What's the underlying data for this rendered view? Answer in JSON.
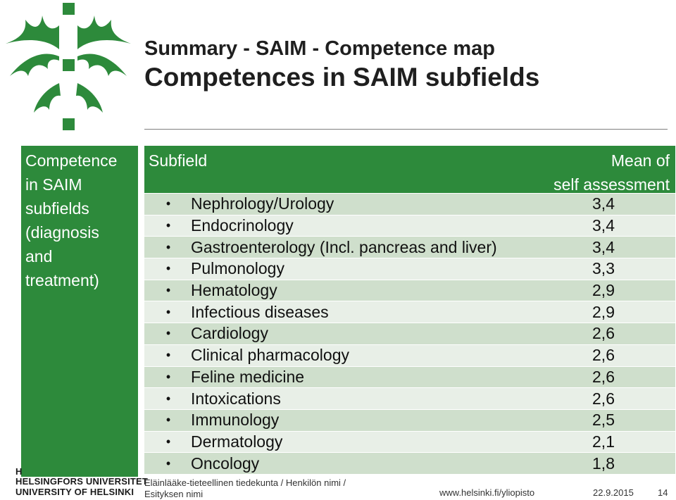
{
  "header": {
    "title_line1": "Summary - SAIM - Competence map",
    "title_line2": "Competences in SAIM subfields"
  },
  "side_box": {
    "lines": [
      "Competence",
      "in SAIM",
      "subfields",
      "(diagnosis",
      "and",
      "treatment)"
    ]
  },
  "table": {
    "col_subfield": "Subfield",
    "col_mean_line1": "Mean of",
    "col_mean_line2": "self assessment",
    "rows": [
      {
        "name": "Nephrology/Urology",
        "value": "3,4"
      },
      {
        "name": "Endocrinology",
        "value": "3,4"
      },
      {
        "name": "Gastroenterology (Incl. pancreas and liver)",
        "value": "3,4"
      },
      {
        "name": "Pulmonology",
        "value": "3,3"
      },
      {
        "name": "Hematology",
        "value": "2,9"
      },
      {
        "name": "Infectious diseases",
        "value": "2,9"
      },
      {
        "name": "Cardiology",
        "value": "2,6"
      },
      {
        "name": "Clinical pharmacology",
        "value": "2,6"
      },
      {
        "name": "Feline medicine",
        "value": "2,6"
      },
      {
        "name": "Intoxications",
        "value": "2,6"
      },
      {
        "name": "Immunology",
        "value": "2,5"
      },
      {
        "name": "Dermatology",
        "value": "2,1"
      },
      {
        "name": "Oncology",
        "value": "1,8"
      }
    ]
  },
  "footer": {
    "logo_h": "H",
    "logo_line1": "HELSINGFORS UNIVERSITET",
    "logo_line2": "UNIVERSITY OF HELSINKI",
    "faculty_line1": "Eläinlääke-tieteellinen tiedekunta / Henkilön nimi /",
    "faculty_line2": "Esityksen nimi",
    "url": "www.helsinki.fi/yliopisto",
    "date": "22.9.2015",
    "page": "14"
  },
  "colors": {
    "header_green": "#2d8a3b",
    "row_light": "#e8efe7",
    "row_dark": "#cfdfcc"
  },
  "icons": {
    "logo": "helsinki-flame-logo-icon",
    "bullet": "bullet-icon"
  }
}
